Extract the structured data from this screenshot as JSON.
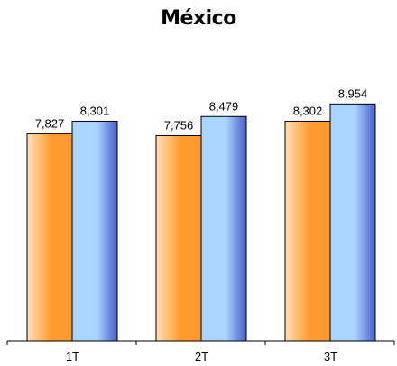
{
  "chart_data": {
    "type": "bar",
    "title": "México",
    "categories": [
      "1T",
      "2T",
      "3T"
    ],
    "series": [
      {
        "values": [
          7827,
          7756,
          8302
        ],
        "labels": [
          "7,827",
          "7,756",
          "8,302"
        ],
        "color_light": "#ffe0b8",
        "color_dark": "#ff9a2e"
      },
      {
        "values": [
          8301,
          8479,
          8954
        ],
        "labels": [
          "8,301",
          "8,479",
          "8,954"
        ],
        "color_light": "#a8d4ff",
        "color_dark": "#4a5cc8"
      }
    ],
    "xlabel": "",
    "ylabel": "",
    "ylim": [
      0,
      10840
    ],
    "grid": false,
    "legend": "none"
  }
}
